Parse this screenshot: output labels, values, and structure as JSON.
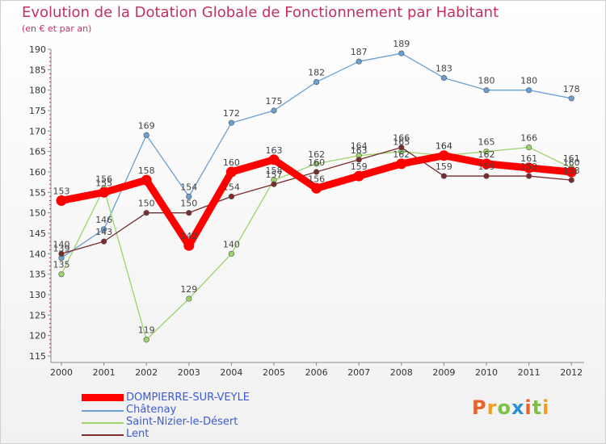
{
  "header": {
    "title": "Evolution de la Dotation Globale de Fonctionnement par Habitant",
    "subtitle": "(en € et par an)"
  },
  "logo": {
    "text": "Proxiti",
    "colors": [
      "#e8632b",
      "#f0a020",
      "#7cc142",
      "#2a8fd6",
      "#e8632b",
      "#7cc142",
      "#f0a020"
    ]
  },
  "chart_data": {
    "type": "line",
    "title": "Evolution de la Dotation Globale de Fonctionnement par Habitant",
    "subtitle": "(en € et par an)",
    "xlabel": "",
    "ylabel": "",
    "x": [
      "2000",
      "2001",
      "2002",
      "2003",
      "2004",
      "2005",
      "2006",
      "2007",
      "2008",
      "2009",
      "2010",
      "2011",
      "2012"
    ],
    "ylim": [
      115,
      190
    ],
    "yticks": [
      115,
      120,
      125,
      130,
      135,
      140,
      145,
      150,
      155,
      160,
      165,
      170,
      175,
      180,
      185,
      190
    ],
    "grid": false,
    "legend_position": "bottom-left",
    "series": [
      {
        "name": "DOMPIERRE-SUR-VEYLE",
        "color": "#ff0000",
        "values": [
          153,
          155,
          158,
          142,
          160,
          163,
          156,
          159,
          162,
          164,
          162,
          161,
          160
        ]
      },
      {
        "name": "Châtenay",
        "color": "#6a9fd1",
        "values": [
          139,
          146,
          169,
          154,
          172,
          175,
          182,
          187,
          189,
          183,
          180,
          180,
          178
        ]
      },
      {
        "name": "Saint-Nizier-le-Désert",
        "color": "#9bd46a",
        "values": [
          135,
          156,
          119,
          129,
          140,
          158,
          162,
          164,
          165,
          164,
          165,
          166,
          161
        ]
      },
      {
        "name": "Lent",
        "color": "#7a2b2b",
        "values": [
          140,
          143,
          150,
          150,
          154,
          157,
          160,
          163,
          166,
          159,
          159,
          159,
          158
        ]
      }
    ]
  }
}
